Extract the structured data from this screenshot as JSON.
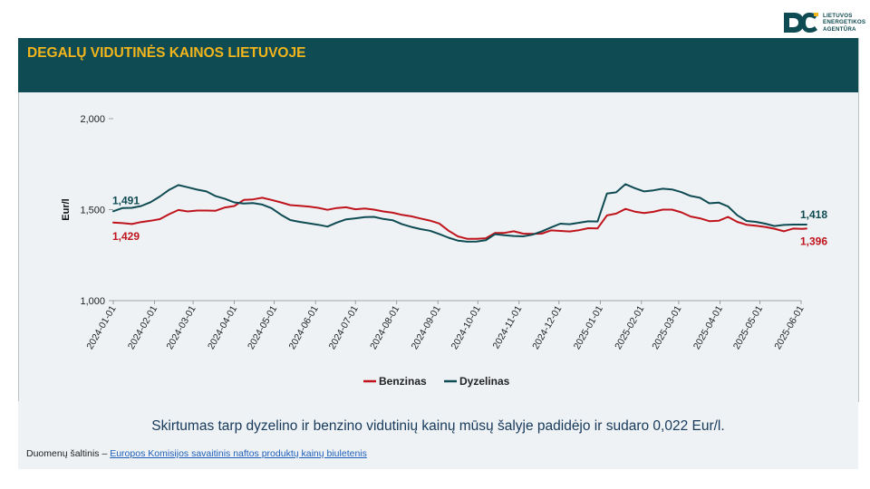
{
  "logo": {
    "lines": [
      "LIETUVOS",
      "ENERGETIKOS",
      "AGENTŪRA"
    ]
  },
  "header": {
    "title": "DEGALŲ VIDUTINĖS KAINOS LIETUVOJE"
  },
  "summary": "Skirtumas tarp dyzelino ir benzino vidutinių kainų mūsų šalyje padidėjo ir sudaro 0,022 Eur/l.",
  "source": {
    "label": "Duomenų šaltinis – ",
    "link_text": "Europos Komisijos savaitinis naftos produktų kainų biuletenis"
  },
  "colors": {
    "benzinas": "#c0141c",
    "dyzelinas": "#0f4b52",
    "header_bg": "#0f4b52",
    "title": "#f2b51c"
  },
  "chart_data": {
    "type": "line",
    "ylabel": "Eur/l",
    "ylim": [
      1.0,
      2.0
    ],
    "yticks": [
      1.0,
      1.5,
      2.0
    ],
    "ytick_labels": [
      "1,000",
      "1,500",
      "2,000"
    ],
    "x_range": [
      "2024-01-01",
      "2025-06-01"
    ],
    "xtick_labels": [
      "2024-01-01",
      "2024-02-01",
      "2024-03-01",
      "2024-04-01",
      "2024-05-01",
      "2024-06-01",
      "2024-07-01",
      "2024-08-01",
      "2024-09-01",
      "2024-10-01",
      "2024-11-01",
      "2024-12-01",
      "2025-01-01",
      "2025-02-01",
      "2025-03-01",
      "2025-04-01",
      "2025-05-01",
      "2025-06-01"
    ],
    "legend_position": "bottom",
    "grid": false,
    "series": [
      {
        "name": "Benzinas",
        "color": "#c0141c",
        "start_label": "1,429",
        "end_label": "1,396",
        "points": [
          [
            "2024-01-01",
            1.429
          ],
          [
            "2024-01-08",
            1.426
          ],
          [
            "2024-01-15",
            1.421
          ],
          [
            "2024-01-22",
            1.432
          ],
          [
            "2024-01-29",
            1.439
          ],
          [
            "2024-02-05",
            1.448
          ],
          [
            "2024-02-12",
            1.475
          ],
          [
            "2024-02-19",
            1.498
          ],
          [
            "2024-02-26",
            1.49
          ],
          [
            "2024-03-04",
            1.495
          ],
          [
            "2024-03-11",
            1.495
          ],
          [
            "2024-03-18",
            1.494
          ],
          [
            "2024-03-25",
            1.512
          ],
          [
            "2024-04-01",
            1.52
          ],
          [
            "2024-04-08",
            1.553
          ],
          [
            "2024-04-15",
            1.556
          ],
          [
            "2024-04-22",
            1.565
          ],
          [
            "2024-04-29",
            1.553
          ],
          [
            "2024-05-06",
            1.54
          ],
          [
            "2024-05-13",
            1.525
          ],
          [
            "2024-05-20",
            1.521
          ],
          [
            "2024-05-27",
            1.517
          ],
          [
            "2024-06-03",
            1.51
          ],
          [
            "2024-06-10",
            1.499
          ],
          [
            "2024-06-17",
            1.509
          ],
          [
            "2024-06-24",
            1.513
          ],
          [
            "2024-07-01",
            1.502
          ],
          [
            "2024-07-08",
            1.506
          ],
          [
            "2024-07-15",
            1.5
          ],
          [
            "2024-07-22",
            1.49
          ],
          [
            "2024-07-29",
            1.483
          ],
          [
            "2024-08-05",
            1.471
          ],
          [
            "2024-08-12",
            1.463
          ],
          [
            "2024-08-19",
            1.451
          ],
          [
            "2024-08-26",
            1.44
          ],
          [
            "2024-09-02",
            1.424
          ],
          [
            "2024-09-09",
            1.384
          ],
          [
            "2024-09-16",
            1.353
          ],
          [
            "2024-09-23",
            1.34
          ],
          [
            "2024-09-30",
            1.34
          ],
          [
            "2024-10-07",
            1.343
          ],
          [
            "2024-10-14",
            1.372
          ],
          [
            "2024-10-21",
            1.372
          ],
          [
            "2024-10-28",
            1.381
          ],
          [
            "2024-11-04",
            1.368
          ],
          [
            "2024-11-11",
            1.367
          ],
          [
            "2024-11-18",
            1.368
          ],
          [
            "2024-11-25",
            1.386
          ],
          [
            "2024-12-02",
            1.383
          ],
          [
            "2024-12-09",
            1.38
          ],
          [
            "2024-12-16",
            1.387
          ],
          [
            "2024-12-23",
            1.398
          ],
          [
            "2024-12-30",
            1.397
          ],
          [
            "2025-01-06",
            1.468
          ],
          [
            "2025-01-13",
            1.478
          ],
          [
            "2025-01-20",
            1.504
          ],
          [
            "2025-01-27",
            1.489
          ],
          [
            "2025-02-03",
            1.481
          ],
          [
            "2025-02-10",
            1.488
          ],
          [
            "2025-02-17",
            1.5
          ],
          [
            "2025-02-24",
            1.5
          ],
          [
            "2025-03-03",
            1.485
          ],
          [
            "2025-03-10",
            1.462
          ],
          [
            "2025-03-17",
            1.452
          ],
          [
            "2025-03-24",
            1.437
          ],
          [
            "2025-03-31",
            1.439
          ],
          [
            "2025-04-07",
            1.46
          ],
          [
            "2025-04-14",
            1.433
          ],
          [
            "2025-04-21",
            1.417
          ],
          [
            "2025-04-28",
            1.412
          ],
          [
            "2025-05-05",
            1.405
          ],
          [
            "2025-05-12",
            1.395
          ],
          [
            "2025-05-19",
            1.381
          ],
          [
            "2025-05-26",
            1.396
          ],
          [
            "2025-06-02",
            1.394
          ],
          [
            "2025-06-05",
            1.396
          ]
        ]
      },
      {
        "name": "Dyzelinas",
        "color": "#0f4b52",
        "start_label": "1,491",
        "end_label": "1,418",
        "points": [
          [
            "2024-01-01",
            1.491
          ],
          [
            "2024-01-08",
            1.509
          ],
          [
            "2024-01-15",
            1.51
          ],
          [
            "2024-01-22",
            1.52
          ],
          [
            "2024-01-29",
            1.541
          ],
          [
            "2024-02-05",
            1.572
          ],
          [
            "2024-02-12",
            1.609
          ],
          [
            "2024-02-19",
            1.635
          ],
          [
            "2024-02-26",
            1.623
          ],
          [
            "2024-03-04",
            1.61
          ],
          [
            "2024-03-11",
            1.6
          ],
          [
            "2024-03-18",
            1.574
          ],
          [
            "2024-03-25",
            1.559
          ],
          [
            "2024-04-01",
            1.54
          ],
          [
            "2024-04-08",
            1.534
          ],
          [
            "2024-04-15",
            1.536
          ],
          [
            "2024-04-22",
            1.528
          ],
          [
            "2024-04-29",
            1.508
          ],
          [
            "2024-05-06",
            1.472
          ],
          [
            "2024-05-13",
            1.443
          ],
          [
            "2024-05-20",
            1.433
          ],
          [
            "2024-05-27",
            1.425
          ],
          [
            "2024-06-03",
            1.417
          ],
          [
            "2024-06-10",
            1.407
          ],
          [
            "2024-06-17",
            1.429
          ],
          [
            "2024-06-24",
            1.447
          ],
          [
            "2024-07-01",
            1.452
          ],
          [
            "2024-07-08",
            1.459
          ],
          [
            "2024-07-15",
            1.46
          ],
          [
            "2024-07-22",
            1.449
          ],
          [
            "2024-07-29",
            1.442
          ],
          [
            "2024-08-05",
            1.42
          ],
          [
            "2024-08-12",
            1.405
          ],
          [
            "2024-08-19",
            1.393
          ],
          [
            "2024-08-26",
            1.384
          ],
          [
            "2024-09-02",
            1.366
          ],
          [
            "2024-09-09",
            1.346
          ],
          [
            "2024-09-16",
            1.33
          ],
          [
            "2024-09-23",
            1.324
          ],
          [
            "2024-09-30",
            1.325
          ],
          [
            "2024-10-07",
            1.332
          ],
          [
            "2024-10-14",
            1.365
          ],
          [
            "2024-10-21",
            1.359
          ],
          [
            "2024-10-28",
            1.355
          ],
          [
            "2024-11-04",
            1.353
          ],
          [
            "2024-11-11",
            1.362
          ],
          [
            "2024-11-18",
            1.38
          ],
          [
            "2024-11-25",
            1.402
          ],
          [
            "2024-12-02",
            1.423
          ],
          [
            "2024-12-09",
            1.42
          ],
          [
            "2024-12-16",
            1.428
          ],
          [
            "2024-12-23",
            1.436
          ],
          [
            "2024-12-30",
            1.435
          ],
          [
            "2025-01-06",
            1.588
          ],
          [
            "2025-01-13",
            1.595
          ],
          [
            "2025-01-20",
            1.64
          ],
          [
            "2025-01-27",
            1.618
          ],
          [
            "2025-02-03",
            1.6
          ],
          [
            "2025-02-10",
            1.606
          ],
          [
            "2025-02-17",
            1.615
          ],
          [
            "2025-02-24",
            1.611
          ],
          [
            "2025-03-03",
            1.596
          ],
          [
            "2025-03-10",
            1.575
          ],
          [
            "2025-03-17",
            1.565
          ],
          [
            "2025-03-24",
            1.535
          ],
          [
            "2025-03-31",
            1.539
          ],
          [
            "2025-04-07",
            1.518
          ],
          [
            "2025-04-14",
            1.469
          ],
          [
            "2025-04-21",
            1.438
          ],
          [
            "2025-04-28",
            1.433
          ],
          [
            "2025-05-05",
            1.423
          ],
          [
            "2025-05-12",
            1.41
          ],
          [
            "2025-05-19",
            1.416
          ],
          [
            "2025-05-26",
            1.418
          ],
          [
            "2025-06-02",
            1.418
          ],
          [
            "2025-06-05",
            1.418
          ]
        ]
      }
    ]
  }
}
